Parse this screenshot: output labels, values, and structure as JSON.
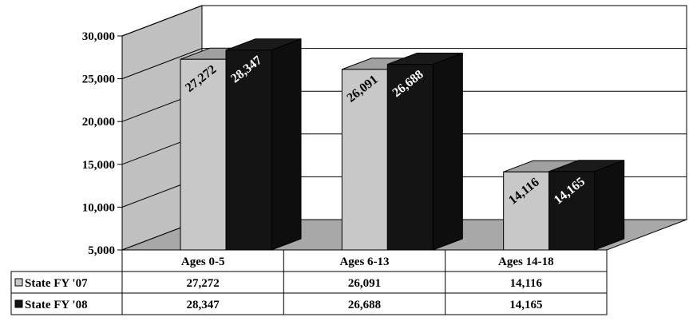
{
  "chart_data": {
    "type": "bar",
    "categories": [
      "Ages 0-5",
      "Ages 6-13",
      "Ages 14-18"
    ],
    "series": [
      {
        "name": "State FY '07",
        "values": [
          27272,
          26091,
          14116
        ],
        "labels": [
          "27,272",
          "26,091",
          "14,116"
        ],
        "color": "#c8c8c8"
      },
      {
        "name": "State FY '08",
        "values": [
          28347,
          26688,
          14165
        ],
        "labels": [
          "28,347",
          "26,688",
          "14,165"
        ],
        "color": "#141414"
      }
    ],
    "ylim": [
      5000,
      30000
    ],
    "yticks": [
      "5,000",
      "10,000",
      "15,000",
      "20,000",
      "25,000",
      "30,000"
    ],
    "ytick_values": [
      5000,
      10000,
      15000,
      20000,
      25000,
      30000
    ],
    "grid": true,
    "three_d": true,
    "legend": "data-table-below",
    "colors": {
      "wall": "#ffffff",
      "side_wall": "#c0c0c0",
      "floor": "#a8a8a8",
      "grid": "#000000"
    }
  }
}
